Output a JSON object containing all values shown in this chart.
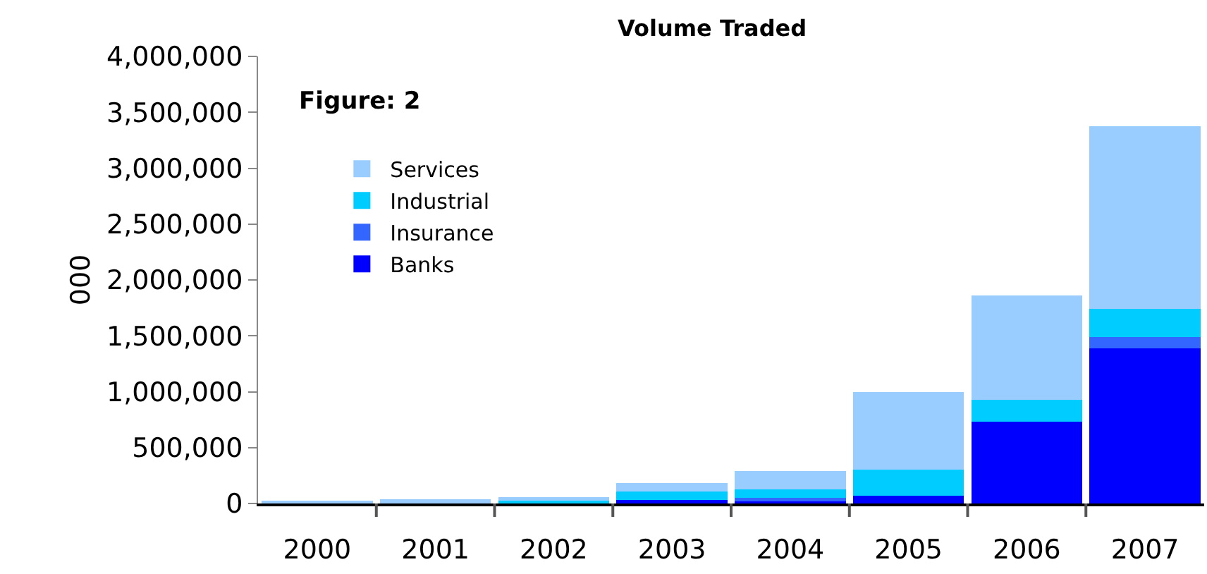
{
  "chart_data": {
    "type": "bar",
    "title": "Volume Traded",
    "ylabel": "000",
    "annotations": [
      "Figure: 2"
    ],
    "categories": [
      "2000",
      "2001",
      "2002",
      "2003",
      "2004",
      "2005",
      "2006",
      "2007"
    ],
    "stacked": true,
    "series": [
      {
        "name": "Banks",
        "color": "#0000ff",
        "values": [
          0,
          0,
          0,
          30000,
          20000,
          70000,
          730000,
          1390000
        ]
      },
      {
        "name": "Insurance",
        "color": "#3366ff",
        "values": [
          0,
          0,
          0,
          0,
          30000,
          0,
          0,
          100000
        ]
      },
      {
        "name": "Industrial",
        "color": "#00ccff",
        "values": [
          0,
          0,
          30000,
          75000,
          75000,
          230000,
          200000,
          250000
        ]
      },
      {
        "name": "Services",
        "color": "#99ccff",
        "values": [
          15000,
          40000,
          25000,
          75000,
          165000,
          700000,
          930000,
          1635000
        ]
      }
    ],
    "ylim": [
      0,
      4000000
    ],
    "yticks": [
      {
        "value": 0,
        "label": "0"
      },
      {
        "value": 500000,
        "label": "500,000"
      },
      {
        "value": 1000000,
        "label": "1,000,000"
      },
      {
        "value": 1500000,
        "label": "1,500,000"
      },
      {
        "value": 2000000,
        "label": "2,000,000"
      },
      {
        "value": 2500000,
        "label": "2,500,000"
      },
      {
        "value": 3000000,
        "label": "3,000,000"
      },
      {
        "value": 3500000,
        "label": "3,500,000"
      },
      {
        "value": 4000000,
        "label": "4,000,000"
      }
    ],
    "grid": false,
    "legend": "top left"
  }
}
